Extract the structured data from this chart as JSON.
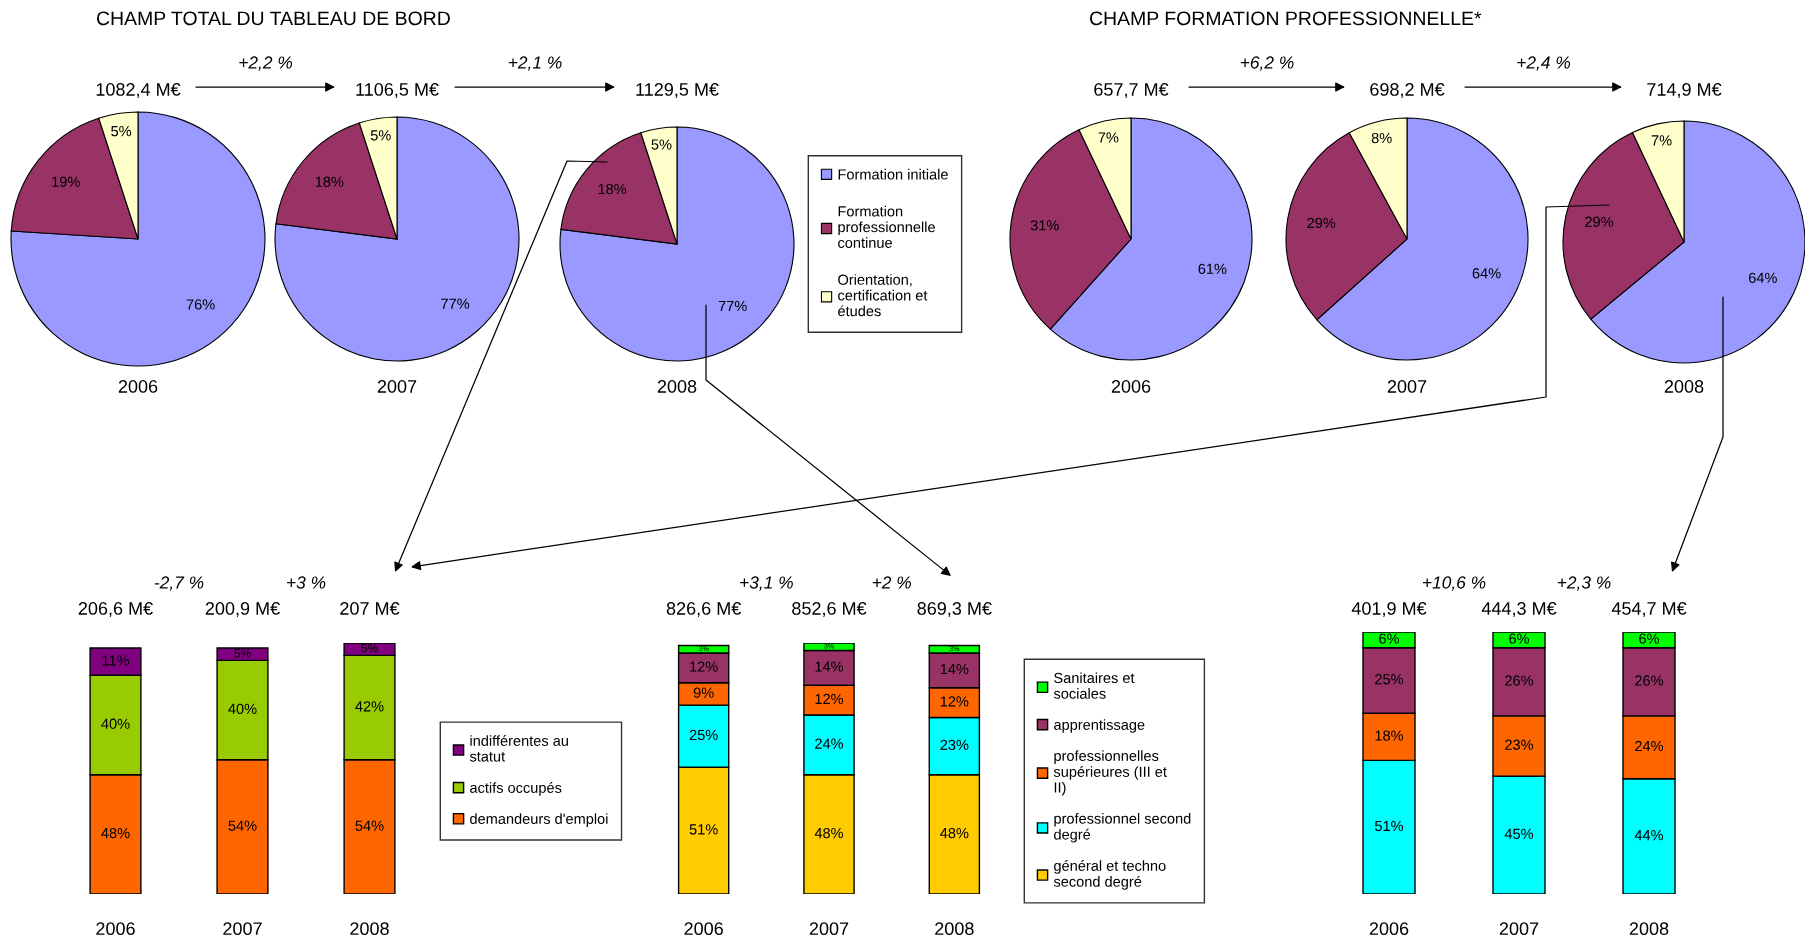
{
  "chart_data": [
    {
      "type": "pie",
      "title": "1082,4 M€",
      "xlabel": "2006",
      "annotations": [
        "CHAMP TOTAL DU TABLEAU DE BORD"
      ],
      "categories": [
        null,
        null,
        null
      ],
      "values": [
        76,
        19,
        5
      ],
      "value_labels": [
        "76%",
        "19%",
        "5%"
      ],
      "colors": [
        "#9999ff",
        "#993366",
        "#ffffcc"
      ]
    },
    {
      "type": "pie",
      "title": "1106,5 M€",
      "xlabel": "2007",
      "annotations": [
        "+2,2 %"
      ],
      "categories": [
        null,
        null,
        null
      ],
      "values": [
        77,
        18,
        5
      ],
      "value_labels": [
        "77%",
        "18%",
        "5%"
      ],
      "colors": [
        "#9999ff",
        "#993366",
        "#ffffcc"
      ]
    },
    {
      "type": "pie",
      "title": "1129,5 M€",
      "xlabel": "2008",
      "annotations": [
        "+2,1 %"
      ],
      "categories": [
        "Formation initiale",
        "Formation professionnelle continue",
        "Orientation, certification et études"
      ],
      "values": [
        77,
        18,
        5
      ],
      "value_labels": [
        "77%",
        "18%",
        "5%"
      ],
      "colors": [
        "#9999ff",
        "#993366",
        "#ffffcc"
      ],
      "legend": "right"
    },
    {
      "type": "pie",
      "title": "657,7 M€",
      "xlabel": "2006",
      "annotations": [
        "CHAMP FORMATION PROFESSIONNELLE*"
      ],
      "categories": [
        null,
        null,
        null
      ],
      "values": [
        61,
        31,
        7
      ],
      "value_labels": [
        "61%",
        "31%",
        "7%"
      ],
      "colors": [
        "#9999ff",
        "#993366",
        "#ffffcc"
      ]
    },
    {
      "type": "pie",
      "title": "698,2 M€",
      "xlabel": "2007",
      "annotations": [
        "+6,2 %"
      ],
      "categories": [
        null,
        null,
        null
      ],
      "values": [
        64,
        29,
        8
      ],
      "value_labels": [
        "64%",
        "29%",
        "8%"
      ],
      "colors": [
        "#9999ff",
        "#993366",
        "#ffffcc"
      ]
    },
    {
      "type": "pie",
      "title": "714,9 M€",
      "xlabel": "2008",
      "annotations": [
        "+2,4 %"
      ],
      "categories": [
        null,
        null,
        null
      ],
      "values": [
        64,
        29,
        7
      ],
      "value_labels": [
        "64%",
        "29%",
        "7%"
      ],
      "colors": [
        "#9999ff",
        "#993366",
        "#ffffcc"
      ]
    },
    {
      "type": "bar",
      "stacked": true,
      "categories": [
        "2006",
        "2007",
        "2008"
      ],
      "legend": "right",
      "annotations": [
        "206,6 M€",
        "200,9 M€",
        "207 M€",
        "-2,7 %",
        "+3 %"
      ],
      "series": [
        {
          "name": "demandeurs d'emploi",
          "color": "#ff6600",
          "values": [
            48,
            54,
            54
          ],
          "value_labels": [
            "48%",
            "54%",
            "54%"
          ]
        },
        {
          "name": "actifs occupés",
          "color": "#99cc00",
          "values": [
            40,
            40,
            42
          ],
          "value_labels": [
            "40%",
            "40%",
            "42%"
          ]
        },
        {
          "name": "indifférentes au statut",
          "color": "#800080",
          "values": [
            11,
            5,
            5
          ],
          "value_labels": [
            "11%",
            "5%",
            "5%"
          ]
        }
      ]
    },
    {
      "type": "bar",
      "stacked": true,
      "categories": [
        "2006",
        "2007",
        "2008"
      ],
      "legend": "right",
      "annotations": [
        "826,6 M€",
        "852,6 M€",
        "869,3 M€",
        "+3,1 %",
        "+2 %"
      ],
      "series": [
        {
          "name": "général et techno second degré",
          "color": "#ffcc00",
          "values": [
            51,
            48,
            48
          ],
          "value_labels": [
            "51%",
            "48%",
            "48%"
          ]
        },
        {
          "name": "professionnel second degré",
          "color": "#00ffff",
          "values": [
            25,
            24,
            23
          ],
          "value_labels": [
            "25%",
            "24%",
            "23%"
          ]
        },
        {
          "name": "professionnelles supérieures (III et II)",
          "color": "#ff6600",
          "values": [
            9,
            12,
            12
          ],
          "value_labels": [
            "9%",
            "12%",
            "12%"
          ]
        },
        {
          "name": "apprentissage",
          "color": "#993366",
          "values": [
            12,
            14,
            14
          ],
          "value_labels": [
            "12%",
            "14%",
            "14%"
          ]
        },
        {
          "name": "Sanitaires et sociales",
          "color": "#00ff00",
          "values": [
            3,
            3,
            3
          ],
          "value_labels": [
            "3%",
            "3%",
            "3%"
          ]
        }
      ]
    },
    {
      "type": "bar",
      "stacked": true,
      "categories": [
        "2006",
        "2007",
        "2008"
      ],
      "annotations": [
        "401,9 M€",
        "444,3 M€",
        "454,7 M€",
        "+10,6 %",
        "+2,3 %"
      ],
      "series": [
        {
          "color": "#00ffff",
          "values": [
            51,
            45,
            44
          ],
          "value_labels": [
            "51%",
            "45%",
            "44%"
          ]
        },
        {
          "color": "#ff6600",
          "values": [
            18,
            23,
            24
          ],
          "value_labels": [
            "18%",
            "23%",
            "24%"
          ]
        },
        {
          "color": "#993366",
          "values": [
            25,
            26,
            26
          ],
          "value_labels": [
            "25%",
            "26%",
            "26%"
          ]
        },
        {
          "color": "#00ff00",
          "values": [
            6,
            6,
            6
          ],
          "value_labels": [
            "6%",
            "6%",
            "6%"
          ]
        }
      ]
    }
  ]
}
